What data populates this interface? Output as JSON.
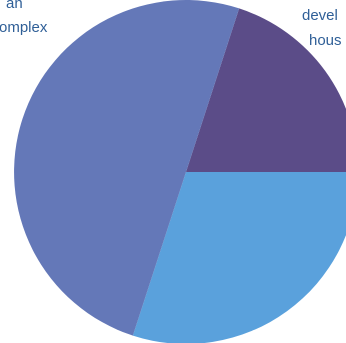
{
  "chart_data": {
    "type": "pie",
    "slices": [
      {
        "label": "",
        "value": 20,
        "color": "#5b4c88"
      },
      {
        "label": "",
        "value": 30,
        "color": "#5aa1dc"
      },
      {
        "label": "",
        "value": 50,
        "color": "#6478b8"
      }
    ],
    "visible_labels": [
      {
        "lines": [
          "an",
          "omplex"
        ]
      },
      {
        "lines": [
          "devel",
          "hous"
        ]
      }
    ],
    "legend": "none"
  },
  "colors": {
    "background": "#ffffff",
    "label_text": "#2f5f97"
  }
}
